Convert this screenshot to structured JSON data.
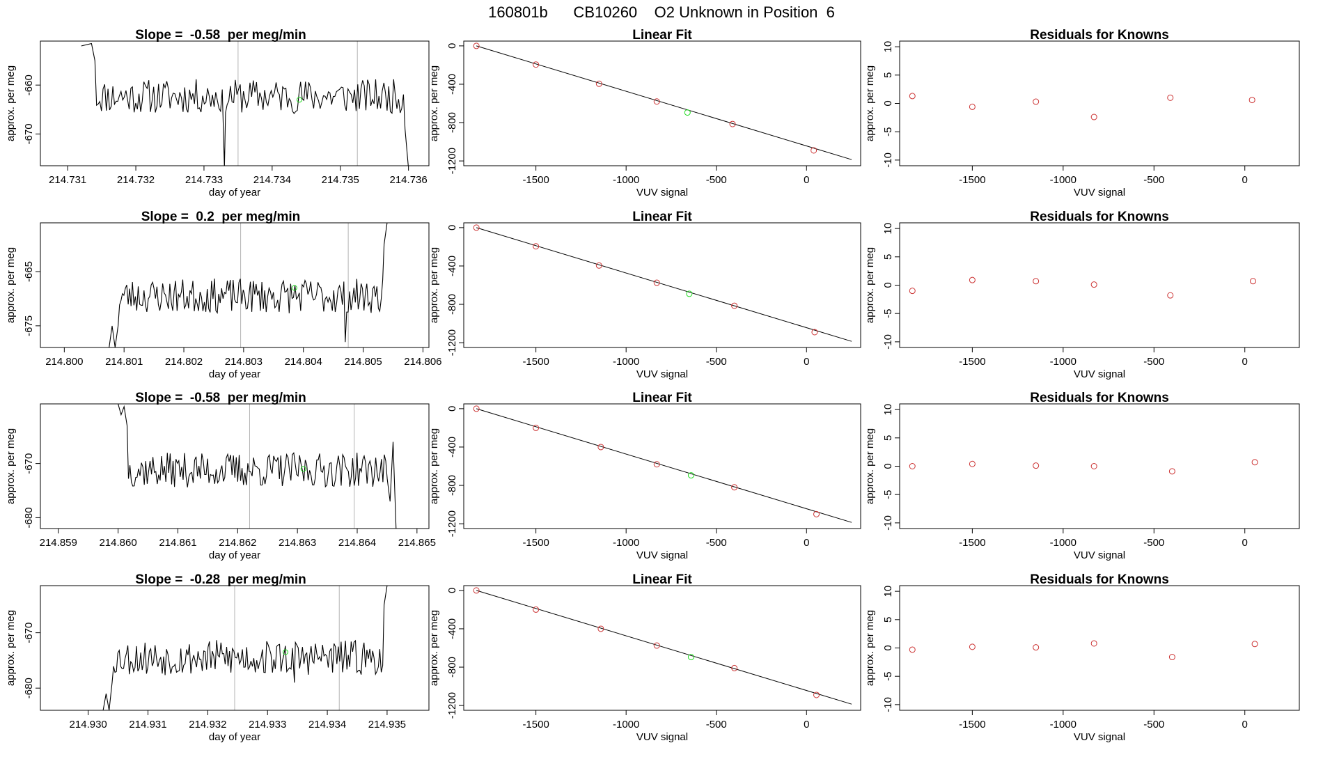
{
  "page_title": "160801b      CB10260    O2 Unknown in Position  6",
  "colors": {
    "line": "#000000",
    "known_point": "#cc3333",
    "unknown_point": "#22dd22",
    "vline": "#b3b3b3"
  },
  "chart_data": [
    {
      "type": "line",
      "panel": "time-series",
      "row": 1,
      "title": "Slope =  -0.58  per meg/min",
      "xlabel": "day of year",
      "ylabel": "approx. per meg",
      "xlim": [
        214.7306,
        214.7363
      ],
      "ylim": [
        -676.5,
        -651
      ],
      "x_ticks": [
        214.731,
        214.732,
        214.733,
        214.734,
        214.735,
        214.736
      ],
      "y_ticks": [
        -660,
        -670
      ],
      "vlines": [
        214.7335,
        214.73525
      ],
      "unknown_point": {
        "x": 214.7344,
        "y": -663
      },
      "seed": 11,
      "baseline": -662.3,
      "noise": 2.2,
      "x_start": 214.7312,
      "x_end": 214.736,
      "start_points": [
        [
          214.7312,
          -652
        ],
        [
          214.73135,
          -651.5
        ],
        [
          214.7314,
          -655
        ]
      ],
      "end_points": [
        [
          214.73595,
          -669
        ],
        [
          214.736,
          -677
        ]
      ],
      "spikes": [
        [
          214.7333,
          -677
        ]
      ]
    },
    {
      "type": "scatter",
      "panel": "linear-fit",
      "row": 1,
      "title": "Linear Fit",
      "xlabel": "VUV signal",
      "ylabel": "approx. per meg",
      "xlim": [
        -1900,
        300
      ],
      "ylim": [
        -1250,
        50
      ],
      "x_ticks": [
        -1500,
        -1000,
        -500,
        0
      ],
      "y_ticks": [
        0,
        -400,
        -800,
        -1200
      ],
      "fit_line": {
        "x": [
          -1830,
          250
        ],
        "y": [
          0,
          -1186
        ]
      },
      "knowns": [
        [
          -1830,
          0
        ],
        [
          -1500,
          -195
        ],
        [
          -1150,
          -395
        ],
        [
          -830,
          -580
        ],
        [
          -410,
          -815
        ],
        [
          40,
          -1090
        ]
      ],
      "unknown": [
        [
          -660,
          -695
        ]
      ]
    },
    {
      "type": "scatter",
      "panel": "residuals",
      "row": 1,
      "title": "Residuals for Knowns",
      "xlabel": "VUV signal",
      "ylabel": "approx. per meg",
      "xlim": [
        -1900,
        300
      ],
      "ylim": [
        -11,
        11
      ],
      "x_ticks": [
        -1500,
        -1000,
        -500,
        0
      ],
      "y_ticks": [
        10,
        5,
        0,
        -5,
        -10
      ],
      "points": [
        [
          -1830,
          1.3
        ],
        [
          -1500,
          -0.6
        ],
        [
          -1150,
          0.3
        ],
        [
          -830,
          -2.4
        ],
        [
          -410,
          1.0
        ],
        [
          40,
          0.6
        ]
      ]
    },
    {
      "type": "line",
      "panel": "time-series",
      "row": 2,
      "title": "Slope =  0.2  per meg/min",
      "xlabel": "day of year",
      "ylabel": "approx. per meg",
      "xlim": [
        214.7996,
        214.8061
      ],
      "ylim": [
        -679,
        -656
      ],
      "x_ticks": [
        214.8,
        214.801,
        214.802,
        214.803,
        214.804,
        214.805,
        214.806
      ],
      "y_ticks": [
        -665,
        -675
      ],
      "vlines": [
        214.80295,
        214.80475
      ],
      "unknown_point": {
        "x": 214.80385,
        "y": -668
      },
      "seed": 23,
      "baseline": -669.5,
      "noise": 2.0,
      "x_start": 214.80075,
      "x_end": 214.8054,
      "start_points": [
        [
          214.80075,
          -679
        ],
        [
          214.8008,
          -675
        ],
        [
          214.80085,
          -679
        ],
        [
          214.8009,
          -675
        ]
      ],
      "end_points": [
        [
          214.80535,
          -660
        ],
        [
          214.8054,
          -656
        ]
      ],
      "spikes": [
        [
          214.8047,
          -678
        ]
      ]
    },
    {
      "type": "scatter",
      "panel": "linear-fit",
      "row": 2,
      "title": "Linear Fit",
      "xlabel": "VUV signal",
      "ylabel": "approx. per meg",
      "xlim": [
        -1900,
        300
      ],
      "ylim": [
        -1250,
        50
      ],
      "x_ticks": [
        -1500,
        -1000,
        -500,
        0
      ],
      "y_ticks": [
        0,
        -400,
        -800,
        -1200
      ],
      "fit_line": {
        "x": [
          -1830,
          250
        ],
        "y": [
          0,
          -1186
        ]
      },
      "knowns": [
        [
          -1830,
          0
        ],
        [
          -1500,
          -195
        ],
        [
          -1150,
          -395
        ],
        [
          -830,
          -575
        ],
        [
          -400,
          -815
        ],
        [
          45,
          -1090
        ]
      ],
      "unknown": [
        [
          -650,
          -690
        ]
      ]
    },
    {
      "type": "scatter",
      "panel": "residuals",
      "row": 2,
      "title": "Residuals for Knowns",
      "xlabel": "VUV signal",
      "ylabel": "approx. per meg",
      "xlim": [
        -1900,
        300
      ],
      "ylim": [
        -11,
        11
      ],
      "x_ticks": [
        -1500,
        -1000,
        -500,
        0
      ],
      "y_ticks": [
        10,
        5,
        0,
        -5,
        -10
      ],
      "points": [
        [
          -1830,
          -1.0
        ],
        [
          -1500,
          0.9
        ],
        [
          -1150,
          0.7
        ],
        [
          -830,
          0.1
        ],
        [
          -410,
          -1.8
        ],
        [
          45,
          0.7
        ]
      ]
    },
    {
      "type": "line",
      "panel": "time-series",
      "row": 3,
      "title": "Slope =  -0.58  per meg/min",
      "xlabel": "day of year",
      "ylabel": "approx. per meg",
      "xlim": [
        214.8587,
        214.8652
      ],
      "ylim": [
        -682,
        -659
      ],
      "x_ticks": [
        214.859,
        214.86,
        214.861,
        214.862,
        214.863,
        214.864,
        214.865
      ],
      "y_ticks": [
        -670,
        -680
      ],
      "vlines": [
        214.8622,
        214.86395
      ],
      "unknown_point": {
        "x": 214.8631,
        "y": -671
      },
      "seed": 37,
      "baseline": -671.2,
      "noise": 2.0,
      "x_start": 214.86,
      "x_end": 214.86465,
      "start_points": [
        [
          214.86,
          -659
        ],
        [
          214.86005,
          -661
        ],
        [
          214.8601,
          -659.5
        ],
        [
          214.86015,
          -663
        ]
      ],
      "end_points": [
        [
          214.86455,
          -677
        ],
        [
          214.86465,
          -682
        ]
      ],
      "spikes": [
        [
          214.8646,
          -666
        ]
      ]
    },
    {
      "type": "scatter",
      "panel": "linear-fit",
      "row": 3,
      "title": "Linear Fit",
      "xlabel": "VUV signal",
      "ylabel": "approx. per meg",
      "xlim": [
        -1900,
        300
      ],
      "ylim": [
        -1250,
        50
      ],
      "x_ticks": [
        -1500,
        -1000,
        -500,
        0
      ],
      "y_ticks": [
        0,
        -400,
        -800,
        -1200
      ],
      "fit_line": {
        "x": [
          -1830,
          250
        ],
        "y": [
          0,
          -1186
        ]
      },
      "knowns": [
        [
          -1830,
          0
        ],
        [
          -1500,
          -200
        ],
        [
          -1140,
          -400
        ],
        [
          -830,
          -580
        ],
        [
          -400,
          -820
        ],
        [
          55,
          -1100
        ]
      ],
      "unknown": [
        [
          -640,
          -695
        ]
      ]
    },
    {
      "type": "scatter",
      "panel": "residuals",
      "row": 3,
      "title": "Residuals for Knowns",
      "xlabel": "VUV signal",
      "ylabel": "approx. per meg",
      "xlim": [
        -1900,
        300
      ],
      "ylim": [
        -11,
        11
      ],
      "x_ticks": [
        -1500,
        -1000,
        -500,
        0
      ],
      "y_ticks": [
        10,
        5,
        0,
        -5,
        -10
      ],
      "points": [
        [
          -1830,
          0.0
        ],
        [
          -1500,
          0.4
        ],
        [
          -1150,
          0.1
        ],
        [
          -830,
          0.0
        ],
        [
          -400,
          -0.9
        ],
        [
          55,
          0.7
        ]
      ]
    },
    {
      "type": "line",
      "panel": "time-series",
      "row": 4,
      "title": "Slope =  -0.28  per meg/min",
      "xlabel": "day of year",
      "ylabel": "approx. per meg",
      "xlim": [
        214.9292,
        214.9357
      ],
      "ylim": [
        -684,
        -661.5
      ],
      "x_ticks": [
        214.93,
        214.931,
        214.932,
        214.933,
        214.934,
        214.935
      ],
      "y_ticks": [
        -670,
        -680
      ],
      "vlines": [
        214.93245,
        214.9342
      ],
      "unknown_point": {
        "x": 214.9333,
        "y": -673.5
      },
      "seed": 53,
      "baseline": -674.5,
      "noise": 2.0,
      "x_start": 214.93025,
      "x_end": 214.935,
      "start_points": [
        [
          214.93025,
          -684
        ],
        [
          214.9303,
          -681
        ],
        [
          214.93035,
          -684
        ],
        [
          214.9304,
          -679
        ]
      ],
      "end_points": [
        [
          214.93495,
          -665
        ],
        [
          214.935,
          -661.5
        ]
      ],
      "spikes": [
        [
          214.93345,
          -679
        ]
      ]
    },
    {
      "type": "scatter",
      "panel": "linear-fit",
      "row": 4,
      "title": "Linear Fit",
      "xlabel": "VUV signal",
      "ylabel": "approx. per meg",
      "xlim": [
        -1900,
        300
      ],
      "ylim": [
        -1250,
        50
      ],
      "x_ticks": [
        -1500,
        -1000,
        -500,
        0
      ],
      "y_ticks": [
        0,
        -400,
        -800,
        -1200
      ],
      "fit_line": {
        "x": [
          -1830,
          250
        ],
        "y": [
          0,
          -1186
        ]
      },
      "knowns": [
        [
          -1830,
          0
        ],
        [
          -1500,
          -200
        ],
        [
          -1140,
          -400
        ],
        [
          -830,
          -575
        ],
        [
          -400,
          -810
        ],
        [
          55,
          -1090
        ]
      ],
      "unknown": [
        [
          -640,
          -695
        ]
      ]
    },
    {
      "type": "scatter",
      "panel": "residuals",
      "row": 4,
      "title": "Residuals for Knowns",
      "xlabel": "VUV signal",
      "ylabel": "approx. per meg",
      "xlim": [
        -1900,
        300
      ],
      "ylim": [
        -11,
        11
      ],
      "x_ticks": [
        -1500,
        -1000,
        -500,
        0
      ],
      "y_ticks": [
        10,
        5,
        0,
        -5,
        -10
      ],
      "points": [
        [
          -1830,
          -0.3
        ],
        [
          -1500,
          0.2
        ],
        [
          -1150,
          0.1
        ],
        [
          -830,
          0.8
        ],
        [
          -400,
          -1.6
        ],
        [
          55,
          0.7
        ]
      ]
    }
  ]
}
